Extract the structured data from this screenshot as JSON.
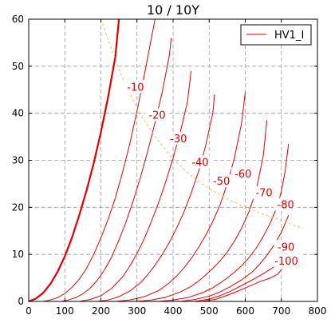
{
  "chart_data": {
    "type": "line",
    "title": "10 / 10Y",
    "xlim": [
      0,
      800
    ],
    "ylim": [
      0,
      60
    ],
    "x_ticks": [
      0,
      100,
      200,
      300,
      400,
      500,
      600,
      700,
      800
    ],
    "y_ticks": [
      0,
      10,
      20,
      30,
      40,
      50,
      60
    ],
    "grid": true,
    "legend": {
      "placement": "top-right",
      "entries": [
        "HV1_I"
      ]
    },
    "colors": {
      "curve": "#e00000",
      "load_line": "#f5b84a",
      "grid": "#999999"
    },
    "series": [
      {
        "name": "HV1_I",
        "label": "",
        "bold": true,
        "x": [
          0,
          20,
          40,
          60,
          80,
          100,
          120,
          140,
          160,
          180,
          200,
          220,
          240,
          250
        ],
        "y": [
          0,
          0.6,
          1.8,
          3.7,
          6.3,
          9.6,
          13.6,
          18.3,
          23.5,
          29.4,
          36.0,
          43.5,
          52.0,
          60.0
        ]
      },
      {
        "label": "-10",
        "x": [
          40,
          60,
          80,
          100,
          120,
          140,
          160,
          180,
          200,
          220,
          240,
          260,
          280,
          300,
          320,
          340,
          350
        ],
        "y": [
          0,
          0.3,
          0.8,
          1.7,
          3.0,
          4.7,
          7.0,
          10.0,
          13.5,
          17.5,
          22.0,
          27.5,
          33.5,
          40.5,
          48.0,
          56.0,
          60.0
        ]
      },
      {
        "label": "-20",
        "x": [
          90,
          110,
          130,
          150,
          170,
          190,
          210,
          230,
          250,
          270,
          290,
          310,
          330,
          350,
          370,
          390,
          395
        ],
        "y": [
          0,
          0.3,
          0.8,
          1.6,
          2.8,
          4.5,
          6.7,
          9.5,
          13.0,
          17.0,
          21.5,
          26.5,
          32.0,
          38.0,
          44.5,
          52.5,
          56.0
        ]
      },
      {
        "label": "-30",
        "x": [
          140,
          170,
          200,
          230,
          260,
          280,
          300,
          320,
          340,
          360,
          380,
          400,
          420,
          440,
          450
        ],
        "y": [
          0,
          0.4,
          1.2,
          2.8,
          5.2,
          7.5,
          10.2,
          13.3,
          17.0,
          21.0,
          25.5,
          30.5,
          36.0,
          42.5,
          49.0
        ]
      },
      {
        "label": "-40",
        "x": [
          190,
          220,
          250,
          280,
          310,
          330,
          350,
          370,
          390,
          410,
          430,
          450,
          470,
          490,
          510,
          515
        ],
        "y": [
          0,
          0.3,
          1.0,
          2.2,
          4.0,
          5.7,
          7.7,
          10.0,
          12.6,
          15.6,
          19.0,
          23.0,
          27.5,
          33.0,
          40.0,
          44.0
        ]
      },
      {
        "label": "-50",
        "x": [
          240,
          280,
          320,
          360,
          390,
          410,
          430,
          450,
          470,
          490,
          510,
          530,
          550,
          570,
          590,
          600
        ],
        "y": [
          0,
          0.3,
          1.0,
          2.3,
          4.0,
          5.4,
          7.1,
          9.1,
          11.4,
          14.0,
          17.0,
          20.5,
          25.0,
          30.5,
          38.0,
          44.5
        ]
      },
      {
        "label": "-60",
        "x": [
          300,
          340,
          380,
          420,
          450,
          470,
          490,
          510,
          530,
          550,
          570,
          590,
          610,
          630,
          650,
          660
        ],
        "y": [
          0,
          0.3,
          0.9,
          2.0,
          3.2,
          4.3,
          5.6,
          7.0,
          8.6,
          10.5,
          12.8,
          15.6,
          19.0,
          23.5,
          31.0,
          38.5
        ]
      },
      {
        "label": "-70",
        "x": [
          360,
          400,
          440,
          480,
          510,
          530,
          550,
          570,
          590,
          610,
          630,
          650,
          670,
          690,
          700,
          710,
          720
        ],
        "y": [
          0,
          0.3,
          0.8,
          1.8,
          2.9,
          3.9,
          5.0,
          6.2,
          7.6,
          9.3,
          11.3,
          13.8,
          16.8,
          20.5,
          23.5,
          27.5,
          33.5
        ]
      },
      {
        "label": "-80",
        "x": [
          420,
          460,
          500,
          530,
          560,
          590,
          620,
          640,
          660,
          680,
          700,
          720
        ],
        "y": [
          0,
          0.4,
          1.1,
          2.0,
          3.2,
          4.6,
          6.3,
          7.9,
          9.8,
          12.0,
          14.7,
          18.3
        ]
      },
      {
        "label": "-90",
        "x": [
          460,
          500,
          530,
          560,
          590,
          620,
          650,
          680,
          690,
          700
        ],
        "y": [
          0,
          0.5,
          1.2,
          2.2,
          3.4,
          4.6,
          5.9,
          7.4,
          8.3,
          8.8
        ]
      },
      {
        "label": "-100",
        "x": [
          480,
          520,
          550,
          580,
          610,
          640,
          670,
          690,
          700
        ],
        "y": [
          0,
          0.5,
          1.3,
          2.2,
          3.2,
          4.2,
          5.0,
          5.8,
          6.8
        ]
      }
    ],
    "load_line": {
      "x": [
        200,
        230,
        260,
        300,
        350,
        400,
        450,
        500,
        550,
        600,
        650,
        700,
        760
      ],
      "y": [
        60,
        53.5,
        47.5,
        41.0,
        35.0,
        30.3,
        26.7,
        24.0,
        21.8,
        20.0,
        18.5,
        17.2,
        15.5
      ]
    },
    "curve_labels": [
      {
        "text": "-10",
        "x": 296,
        "y": 45.5
      },
      {
        "text": "-20",
        "x": 356,
        "y": 39.5
      },
      {
        "text": "-30",
        "x": 415,
        "y": 34.5
      },
      {
        "text": "-40",
        "x": 475,
        "y": 29.5
      },
      {
        "text": "-50",
        "x": 534,
        "y": 25.5
      },
      {
        "text": "-60",
        "x": 594,
        "y": 27.0
      },
      {
        "text": "-70",
        "x": 652,
        "y": 23.0
      },
      {
        "text": "-80",
        "x": 712,
        "y": 20.5
      },
      {
        "text": "-90",
        "x": 713,
        "y": 11.5
      },
      {
        "text": "-100",
        "x": 714,
        "y": 8.5
      }
    ]
  }
}
